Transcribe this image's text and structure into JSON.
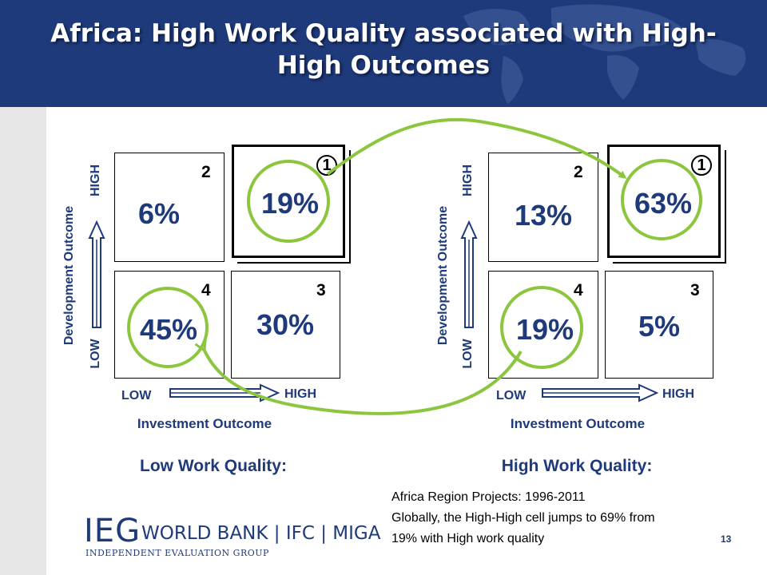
{
  "title": "Africa: High Work Quality associated with High-High Outcomes",
  "title_line1": "Africa: High Work Quality associated with  High-",
  "title_line2": "High Outcomes",
  "left_panel": {
    "quality_label": "Low Work Quality:",
    "y_axis_title": "Development Outcome",
    "y_low": "LOW",
    "y_high": "HIGH",
    "x_low": "LOW",
    "x_high": "HIGH",
    "x_axis_title": "Investment Outcome",
    "cells": {
      "top_left": {
        "number": "2",
        "value": "6%"
      },
      "top_right": {
        "number": "1",
        "value": "19%"
      },
      "bottom_left": {
        "number": "4",
        "value": "45%"
      },
      "bottom_right": {
        "number": "3",
        "value": "30%"
      }
    }
  },
  "right_panel": {
    "quality_label": "High Work Quality:",
    "y_axis_title": "Development Outcome",
    "y_low": "LOW",
    "y_high": "HIGH",
    "x_low": "LOW",
    "x_high": "HIGH",
    "x_axis_title": "Investment Outcome",
    "cells": {
      "top_left": {
        "number": "2",
        "value": "13%"
      },
      "top_right": {
        "number": "1",
        "value": "63%"
      },
      "bottom_left": {
        "number": "4",
        "value": "19%"
      },
      "bottom_right": {
        "number": "3",
        "value": "5%"
      }
    }
  },
  "note": {
    "line1": "Africa Region Projects: 1996-2011",
    "line2": "Globally, the High-High cell jumps to 69% from",
    "line3": "19% with High work quality"
  },
  "logo": {
    "ieg": "IEG",
    "orgs": "WORLD BANK  |  IFC  |  MIGA",
    "subtitle": "INDEPENDENT EVALUATION GROUP"
  },
  "page_number": "13",
  "colors": {
    "header_blue": "#1f3a7a",
    "highlight_green": "#8cc63f",
    "text_blue": "#1f3a7a"
  }
}
